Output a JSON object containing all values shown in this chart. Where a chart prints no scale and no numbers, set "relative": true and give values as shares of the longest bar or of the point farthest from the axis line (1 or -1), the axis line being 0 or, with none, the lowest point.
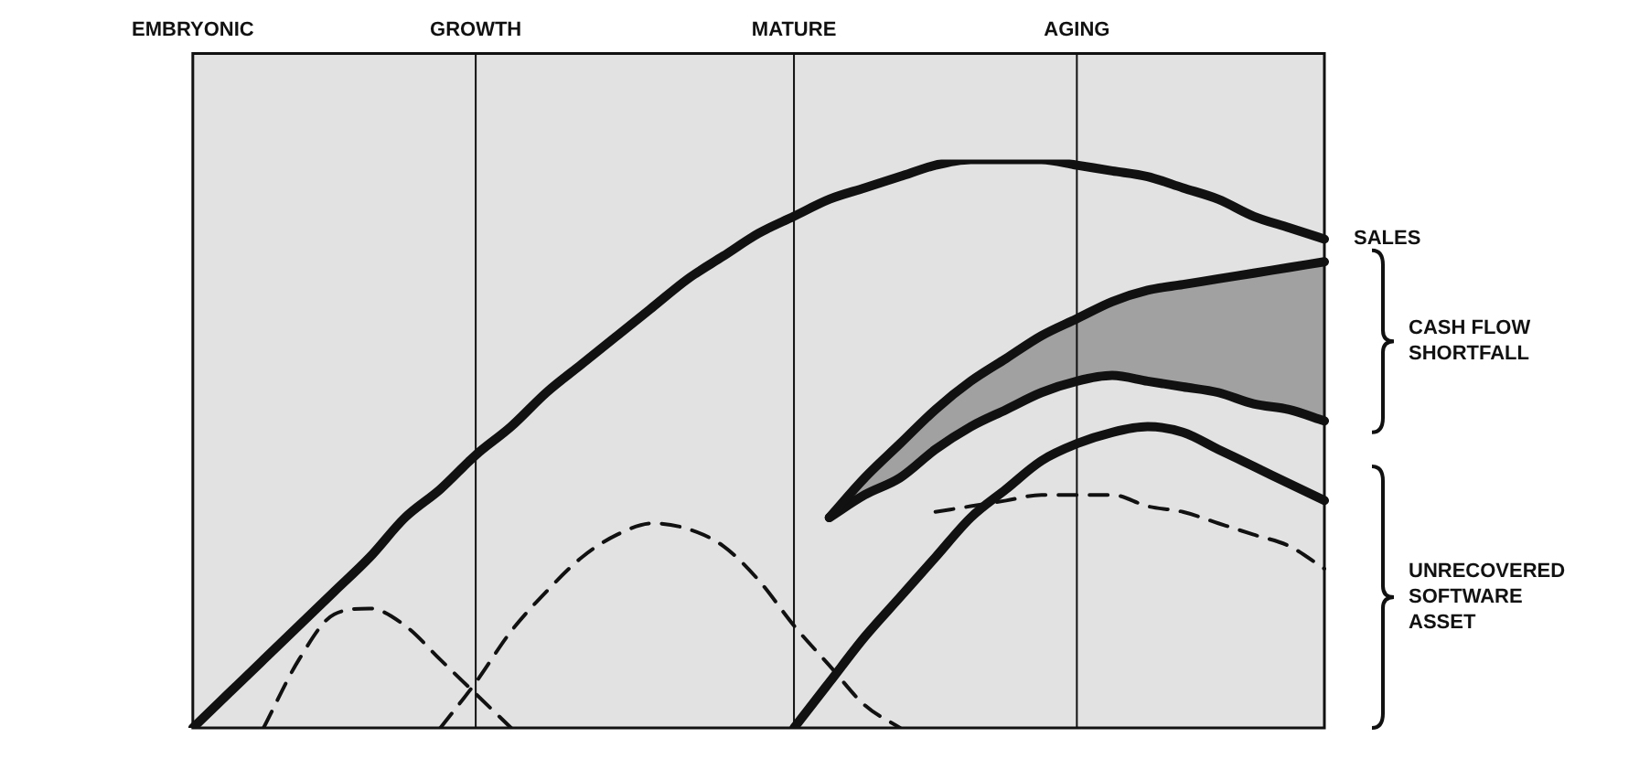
{
  "chart_data": {
    "type": "line",
    "relative": true,
    "tick_labels": "x",
    "marker": "none",
    "categories": [
      "EMBRYONIC",
      null,
      null,
      null,
      null,
      null,
      null,
      null,
      "GROWTH",
      null,
      null,
      null,
      null,
      null,
      null,
      null,
      null,
      "MATURE",
      null,
      null,
      null,
      null,
      null,
      null,
      null,
      "AGING",
      null,
      null,
      null,
      null,
      null,
      null,
      null
    ],
    "series": [
      {
        "name": "SALES",
        "color": "#111111",
        "values": [
          0,
          0.06,
          0.12,
          0.18,
          0.24,
          0.3,
          0.37,
          0.42,
          0.48,
          0.53,
          0.59,
          0.64,
          0.69,
          0.74,
          0.79,
          0.83,
          0.87,
          0.9,
          0.93,
          0.95,
          0.97,
          0.99,
          1.0,
          1.0,
          1.0,
          0.99,
          0.98,
          0.97,
          0.95,
          0.93,
          0.9,
          0.88,
          0.86
        ]
      },
      {
        "color": "#111111",
        "values": [
          null,
          null,
          null,
          null,
          null,
          null,
          null,
          null,
          null,
          null,
          null,
          null,
          null,
          null,
          null,
          null,
          null,
          null,
          0.37,
          0.44,
          0.5,
          0.56,
          0.61,
          0.65,
          0.69,
          0.72,
          0.75,
          0.77,
          0.78,
          0.79,
          0.8,
          0.81,
          0.82
        ],
        "lower": [
          null,
          null,
          null,
          null,
          null,
          null,
          null,
          null,
          null,
          null,
          null,
          null,
          null,
          null,
          null,
          null,
          null,
          null,
          0.37,
          0.41,
          0.44,
          0.49,
          0.53,
          0.56,
          0.59,
          0.61,
          0.62,
          0.61,
          0.6,
          0.59,
          0.57,
          0.56,
          0.54
        ],
        "upper": [
          null,
          null,
          null,
          null,
          null,
          null,
          null,
          null,
          null,
          null,
          null,
          null,
          null,
          null,
          null,
          null,
          null,
          null,
          0.37,
          0.44,
          0.5,
          0.56,
          0.61,
          0.65,
          0.69,
          0.72,
          0.75,
          0.77,
          0.78,
          0.79,
          0.8,
          0.81,
          0.82
        ]
      },
      {
        "color": "#111111",
        "values": [
          null,
          null,
          null,
          null,
          null,
          null,
          null,
          null,
          null,
          null,
          null,
          null,
          null,
          null,
          null,
          null,
          null,
          null,
          0.37,
          0.41,
          0.44,
          0.49,
          0.53,
          0.56,
          0.59,
          0.61,
          0.62,
          0.61,
          0.6,
          0.59,
          0.57,
          0.56,
          0.54
        ]
      },
      {
        "color": "#111111",
        "values": [
          null,
          null,
          null,
          null,
          null,
          null,
          null,
          null,
          null,
          null,
          null,
          null,
          null,
          null,
          null,
          null,
          null,
          0,
          0.08,
          0.16,
          0.23,
          0.3,
          0.37,
          0.42,
          0.47,
          0.5,
          0.52,
          0.53,
          0.52,
          0.49,
          0.46,
          0.43,
          0.4
        ]
      },
      {
        "color": "#111111",
        "line_style": "dashed",
        "values": [
          null,
          null,
          0,
          0.12,
          0.2,
          0.21,
          0.18,
          0.12,
          0.06,
          0,
          null,
          null,
          null,
          null,
          null,
          null,
          null,
          null,
          null,
          null,
          null,
          null,
          null,
          null,
          null,
          null,
          null,
          null,
          null,
          null,
          null,
          null,
          null
        ]
      },
      {
        "color": "#111111",
        "line_style": "dashed",
        "values": [
          null,
          null,
          null,
          null,
          null,
          null,
          null,
          0,
          0.08,
          0.17,
          0.24,
          0.3,
          0.34,
          0.36,
          0.35,
          0.32,
          0.26,
          0.18,
          0.11,
          0.04,
          0,
          null,
          null,
          null,
          null,
          null,
          null,
          null,
          null,
          null,
          null,
          null,
          null
        ]
      },
      {
        "color": "#111111",
        "line_style": "dashed",
        "values": [
          null,
          null,
          null,
          null,
          null,
          null,
          null,
          null,
          null,
          null,
          null,
          null,
          null,
          null,
          null,
          null,
          null,
          null,
          null,
          null,
          null,
          0.38,
          0.39,
          0.4,
          0.41,
          0.41,
          0.41,
          0.39,
          0.38,
          0.36,
          0.34,
          0.32,
          0.28
        ]
      }
    ],
    "ref_lines": [
      {
        "axis": "x",
        "value": "GROWTH"
      },
      {
        "axis": "x",
        "value": "MATURE"
      },
      {
        "axis": "x",
        "value": "AGING"
      }
    ],
    "annotations": [
      "CASH FLOW SHORTFALL",
      "UNRECOVERED SOFTWARE ASSET"
    ]
  }
}
